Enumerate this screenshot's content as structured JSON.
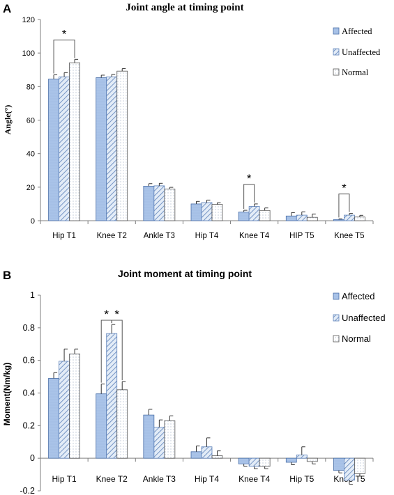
{
  "panels": [
    {
      "panel_label": "A",
      "chart_data": {
        "type": "bar",
        "title": "Joint angle at timing point",
        "xlabel": "",
        "ylabel": "Angle(°)",
        "ylim": [
          0,
          120
        ],
        "yticks": [
          0,
          20,
          40,
          60,
          80,
          100,
          120
        ],
        "grid": false,
        "legend_position": "top-right",
        "categories": [
          "Hip T1",
          "Knee T2",
          "Ankle T3",
          "Hip T4",
          "Knee T4",
          "HIP T5",
          "Knee T5"
        ],
        "series": [
          {
            "name": "Affected",
            "values": [
              84.5,
              85.3,
              20.6,
              10.0,
              5.2,
              2.8,
              0.7
            ],
            "errors": [
              2.5,
              1.5,
              1.5,
              1.5,
              1.0,
              2.0,
              0.4
            ]
          },
          {
            "name": "Unaffected",
            "values": [
              85.8,
              85.8,
              20.8,
              10.8,
              8.5,
              3.3,
              3.3
            ],
            "errors": [
              2.5,
              1.5,
              1.5,
              1.5,
              1.5,
              2.0,
              1.0
            ]
          },
          {
            "name": "Normal",
            "values": [
              94.2,
              89.2,
              18.9,
              9.7,
              6.1,
              2.0,
              2.2
            ],
            "errors": [
              2.0,
              1.5,
              1.0,
              1.0,
              1.5,
              2.0,
              1.0
            ]
          }
        ],
        "significance": [
          {
            "category": "Hip T1",
            "from": 0,
            "to": 2,
            "label": "*"
          },
          {
            "category": "Knee T4",
            "from": 0,
            "to": 1,
            "label": "*"
          },
          {
            "category": "Knee T5",
            "from": 0,
            "to": 1,
            "label": "*"
          }
        ]
      }
    },
    {
      "panel_label": "B",
      "chart_data": {
        "type": "bar",
        "title": "Joint moment at timing point",
        "xlabel": "",
        "ylabel": "Moment(Nm/kg)",
        "ylim": [
          -0.2,
          1
        ],
        "yticks": [
          -0.2,
          0,
          0.2,
          0.4,
          0.6,
          0.8,
          1
        ],
        "yticklabels": [
          "-0.2",
          "0",
          "0.2",
          "0.4",
          "0.6",
          "0.8",
          "1"
        ],
        "grid": false,
        "legend_position": "top-right",
        "categories": [
          "Hip T1",
          "Knee T2",
          "Ankle T3",
          "Hip T4",
          "Knee T4",
          "Hip T5",
          "Knee T5"
        ],
        "series": [
          {
            "name": "Affected",
            "values": [
              0.49,
              0.395,
              0.265,
              0.04,
              -0.035,
              -0.025,
              -0.075
            ],
            "errors": [
              0.035,
              0.06,
              0.035,
              0.035,
              0.015,
              0.015,
              0.015
            ]
          },
          {
            "name": "Unaffected",
            "values": [
              0.595,
              0.765,
              0.19,
              0.07,
              -0.05,
              0.02,
              -0.135
            ],
            "errors": [
              0.075,
              0.055,
              0.045,
              0.055,
              0.015,
              0.05,
              0.025
            ]
          },
          {
            "name": "Normal",
            "values": [
              0.64,
              0.42,
              0.23,
              0.015,
              -0.05,
              -0.02,
              -0.095
            ],
            "errors": [
              0.03,
              0.05,
              0.03,
              0.03,
              0.015,
              0.015,
              0.015
            ]
          }
        ],
        "significance": [
          {
            "category": "Knee T2",
            "from": 0,
            "to": 1,
            "label": "*"
          },
          {
            "category": "Knee T2",
            "from": 1,
            "to": 2,
            "label": "*"
          }
        ]
      }
    }
  ],
  "colors": {
    "affected_fill": "#a9c3e8",
    "affected_stroke": "#4a6fa8",
    "unaffected_fill": "#d7e4f4",
    "unaffected_hatch": "#5a7fb8",
    "normal_fill": "#ffffff",
    "normal_dot": "#7a8fb0",
    "axis": "#7f7f7f",
    "text": "#000000"
  }
}
